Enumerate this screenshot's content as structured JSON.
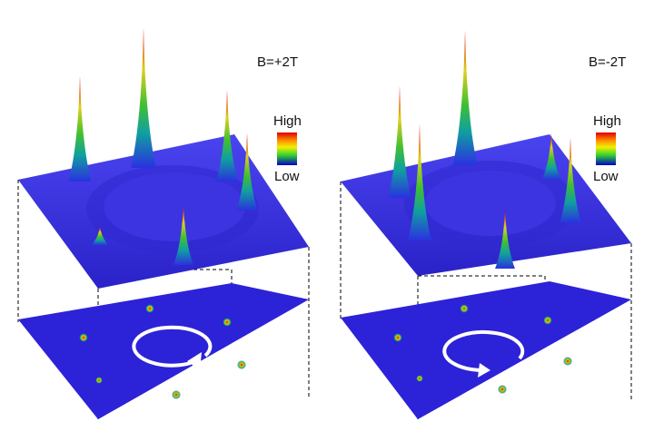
{
  "panels": [
    {
      "field_label": "B=+2T",
      "rotation": "counterclockwise",
      "peak_heights": [
        0.75,
        1.0,
        0.43,
        0.55,
        0.13,
        0.65
      ]
    },
    {
      "field_label": "B=-2T",
      "rotation": "clockwise",
      "peak_heights": [
        0.8,
        0.96,
        0.42,
        0.61,
        0.83,
        0.33
      ]
    }
  ],
  "colorbar": {
    "high_label": "High",
    "low_label": "Low",
    "colors": [
      "#e00000",
      "#ff9000",
      "#f0f000",
      "#30d030",
      "#0000c8"
    ]
  },
  "colors": {
    "surface": "#3a33e8",
    "surface_dark": "#2a24c8",
    "plane": "#2c22d8",
    "arrow": "#ffffff"
  }
}
